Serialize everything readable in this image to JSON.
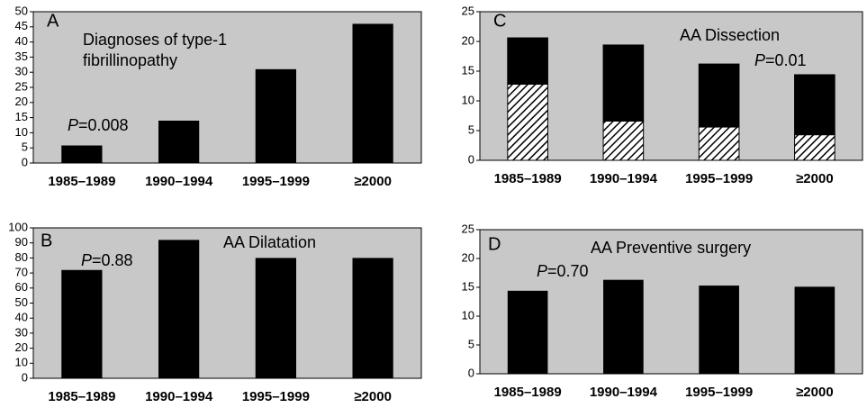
{
  "chart_data": [
    {
      "type": "bar",
      "label": "A",
      "title": [
        "Diagnoses of type-1",
        "fibrillinopathy"
      ],
      "p_symbol": "P",
      "p_value": "=0.008",
      "categories": [
        "1985–1989",
        "1990–1994",
        "1995–1999",
        "≥2000"
      ],
      "values": [
        5.8,
        14,
        31,
        46
      ],
      "color": "#000000",
      "ylim": [
        0,
        50
      ],
      "yticks": [
        0,
        5,
        10,
        15,
        20,
        25,
        30,
        35,
        40,
        45,
        50
      ]
    },
    {
      "type": "stacked_bar",
      "label": "C",
      "title": [
        "AA Dissection"
      ],
      "p_symbol": "P",
      "p_value": "=0.01",
      "categories": [
        "1985–1989",
        "1990–1994",
        "1995–1999",
        "≥2000"
      ],
      "series": [
        {
          "color": "#000000",
          "hatch": true,
          "values": [
            12.8,
            6.6,
            5.6,
            4.3
          ]
        },
        {
          "color": "#000000",
          "values": [
            7.8,
            12.8,
            10.6,
            10.1
          ]
        }
      ],
      "ylim": [
        0,
        25
      ],
      "yticks": [
        0,
        5,
        10,
        15,
        20,
        25
      ]
    },
    {
      "type": "bar",
      "label": "B",
      "title": [
        "AA Dilatation"
      ],
      "p_symbol": "P",
      "p_value": "=0.88",
      "categories": [
        "1985–1989",
        "1990–1994",
        "1995–1999",
        "≥2000"
      ],
      "values": [
        72,
        92,
        80,
        80
      ],
      "color": "#000000",
      "ylim": [
        0,
        100
      ],
      "yticks": [
        0,
        10,
        20,
        30,
        40,
        50,
        60,
        70,
        80,
        90,
        100
      ]
    },
    {
      "type": "bar",
      "label": "D",
      "title": [
        "AA Preventive surgery"
      ],
      "p_symbol": "P",
      "p_value": "=0.70",
      "categories": [
        "1985–1989",
        "1990–1994",
        "1995–1999",
        "≥2000"
      ],
      "values": [
        14.4,
        16.3,
        15.3,
        15.1
      ],
      "color": "#000000",
      "ylim": [
        0,
        25
      ],
      "yticks": [
        0,
        5,
        10,
        15,
        20,
        25
      ]
    }
  ]
}
